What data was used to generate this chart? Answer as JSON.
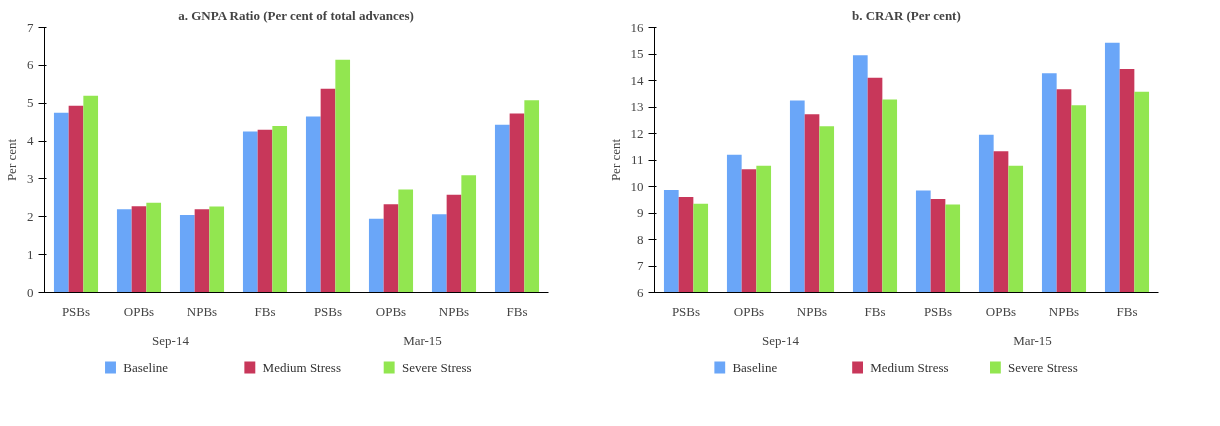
{
  "chart_data": [
    {
      "type": "bar",
      "title": "a. GNPA Ratio (Per cent of total advances)",
      "ylabel": "Per cent",
      "categories": [
        "PSBs",
        "OPBs",
        "NPBs",
        "FBs",
        "PSBs",
        "OPBs",
        "NPBs",
        "FBs"
      ],
      "annotations": [
        "Sep-14",
        "Mar-15"
      ],
      "series": [
        {
          "name": "Baseline",
          "color": "#6aa6f8",
          "values": [
            4.75,
            2.2,
            2.05,
            4.25,
            4.65,
            1.95,
            2.07,
            4.43
          ]
        },
        {
          "name": "Medium Stress",
          "color": "#c8375a",
          "values": [
            4.93,
            2.28,
            2.2,
            4.3,
            5.38,
            2.33,
            2.58,
            4.73
          ]
        },
        {
          "name": "Severe Stress",
          "color": "#92e650",
          "values": [
            5.2,
            2.37,
            2.27,
            4.4,
            6.15,
            2.72,
            3.1,
            5.08
          ]
        }
      ],
      "ylim": [
        0,
        7
      ],
      "yticks": [
        0,
        1,
        2,
        3,
        4,
        5,
        6,
        7
      ],
      "grid": false,
      "legend": "bottom"
    },
    {
      "type": "bar",
      "title": "b. CRAR (Per cent)",
      "ylabel": "Per cent",
      "categories": [
        "PSBs",
        "OPBs",
        "NPBs",
        "FBs",
        "PSBs",
        "OPBs",
        "NPBs",
        "FBs"
      ],
      "annotations": [
        "Sep-14",
        "Mar-15"
      ],
      "series": [
        {
          "name": "Baseline",
          "color": "#6aa6f8",
          "values": [
            9.87,
            11.2,
            13.25,
            14.95,
            9.85,
            11.95,
            14.27,
            15.42
          ]
        },
        {
          "name": "Medium Stress",
          "color": "#c8375a",
          "values": [
            9.6,
            10.65,
            12.73,
            14.1,
            9.53,
            11.33,
            13.67,
            14.43
          ]
        },
        {
          "name": "Severe Stress",
          "color": "#92e650",
          "values": [
            9.35,
            10.78,
            12.27,
            13.28,
            9.32,
            10.78,
            13.07,
            13.58
          ]
        }
      ],
      "ylim": [
        6,
        16
      ],
      "yticks": [
        6,
        7,
        8,
        9,
        10,
        11,
        12,
        13,
        14,
        15,
        16
      ],
      "grid": false,
      "legend": "bottom"
    }
  ]
}
